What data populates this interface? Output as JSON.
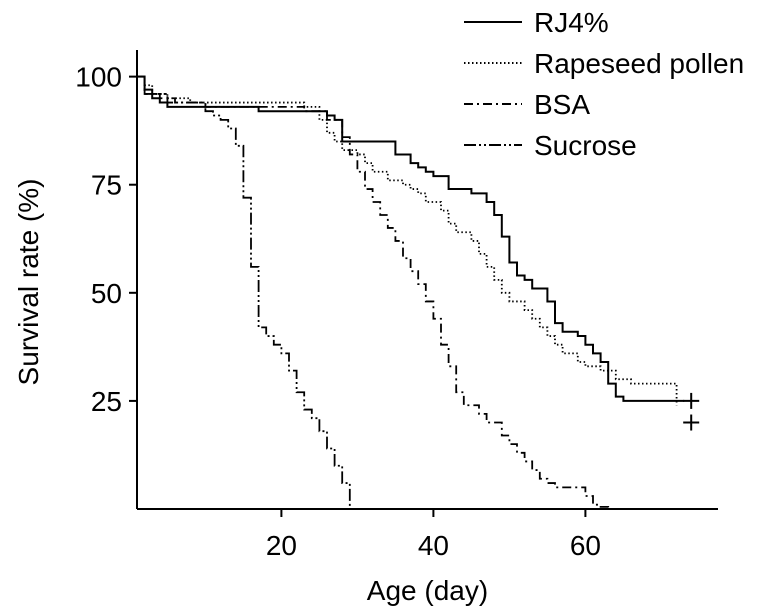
{
  "chart_data": {
    "type": "line",
    "step": true,
    "xlabel": "Age (day)",
    "ylabel": "Survival rate (%)",
    "xlim": [
      1,
      81
    ],
    "ylim": [
      0,
      105
    ],
    "x_ticks": [
      20,
      40,
      60
    ],
    "y_ticks": [
      25,
      50,
      75,
      100
    ],
    "grid": false,
    "legend_position": "top-right",
    "series": [
      {
        "name": "RJ4%",
        "line_style": "solid",
        "color": "#000000",
        "x": [
          1,
          2,
          3,
          4,
          5,
          10,
          17,
          23,
          26,
          27,
          28,
          35,
          37,
          38,
          39,
          40,
          42,
          45,
          47,
          48,
          49,
          50,
          51,
          52,
          53,
          55,
          56,
          57,
          59,
          60,
          61,
          62,
          63,
          64,
          65,
          66,
          73
        ],
        "y": [
          100,
          97,
          95,
          94,
          93,
          93,
          92,
          92,
          91,
          90,
          85,
          82,
          80,
          79,
          78,
          77,
          74,
          73,
          71,
          68,
          63,
          57,
          54,
          53,
          51,
          48,
          43,
          41,
          40,
          38,
          36,
          34,
          29,
          26,
          25,
          25,
          25
        ],
        "censored": [
          {
            "x": 73,
            "y": 25
          }
        ]
      },
      {
        "name": "Rapeseed pollen",
        "line_style": "dotted",
        "color": "#000000",
        "x": [
          1,
          2,
          3,
          5,
          8,
          10,
          20,
          23,
          25,
          26,
          27,
          28,
          30,
          31,
          32,
          34,
          36,
          37,
          38,
          39,
          41,
          42,
          43,
          45,
          46,
          47,
          48,
          49,
          50,
          52,
          53,
          54,
          55,
          56,
          57,
          59,
          60,
          62,
          64,
          66,
          72
        ],
        "y": [
          100,
          98,
          96,
          95,
          94,
          94,
          94,
          93,
          90,
          87,
          85,
          83,
          82,
          80,
          78,
          76,
          75,
          74,
          73,
          71,
          69,
          66,
          64,
          62,
          59,
          56,
          53,
          50,
          48,
          46,
          44,
          42,
          40,
          38,
          36,
          34,
          33,
          32,
          30,
          29,
          24
        ],
        "censored": [
          {
            "x": 73,
            "y": 20
          }
        ]
      },
      {
        "name": "BSA",
        "line_style": "dash-dot",
        "color": "#000000",
        "x": [
          1,
          2,
          4,
          6,
          10,
          20,
          23,
          26,
          28,
          29,
          30,
          31,
          32,
          33,
          34,
          35,
          36,
          37,
          38,
          39,
          40,
          41,
          42,
          43,
          44,
          46,
          47,
          49,
          50,
          51,
          52,
          53,
          54,
          55,
          56,
          58,
          60,
          61,
          62,
          63
        ],
        "y": [
          100,
          96,
          95,
          94,
          93,
          93,
          92,
          90,
          86,
          82,
          78,
          74,
          71,
          68,
          65,
          62,
          58,
          55,
          52,
          48,
          44,
          38,
          33,
          27,
          24,
          22,
          20,
          17,
          15,
          13,
          11,
          9,
          7,
          6,
          5,
          5,
          3,
          1,
          0.5,
          0
        ],
        "censored": []
      },
      {
        "name": "Sucrose",
        "line_style": "dash-dot-dot",
        "color": "#000000",
        "x": [
          1,
          2,
          5,
          10,
          11,
          12,
          13,
          14,
          15,
          16,
          17,
          18,
          19,
          20,
          21,
          22,
          23,
          24,
          25,
          26,
          27,
          28,
          29
        ],
        "y": [
          100,
          96,
          94,
          92,
          91,
          90,
          88,
          84,
          72,
          56,
          42,
          40,
          38,
          36,
          32,
          27,
          23,
          21,
          18,
          14,
          10,
          6,
          0
        ],
        "censored": []
      }
    ]
  }
}
